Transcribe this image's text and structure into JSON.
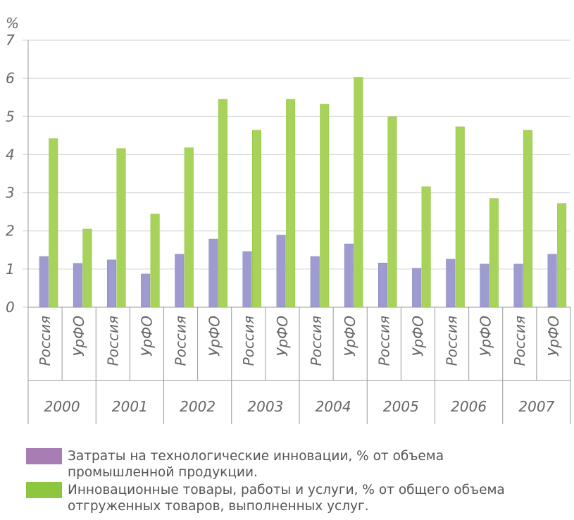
{
  "chart_data": {
    "type": "bar",
    "y_unit": "%",
    "categories": [
      "Россия",
      "УрФО",
      "Россия",
      "УрФО",
      "Россия",
      "УрФО",
      "Россия",
      "УрФО",
      "Россия",
      "УрФО",
      "Россия",
      "УрФО",
      "Россия",
      "УрФО",
      "Россия",
      "УрФО"
    ],
    "groups": [
      "2000",
      "2001",
      "2002",
      "2003",
      "2004",
      "2005",
      "2006",
      "2007"
    ],
    "series": [
      {
        "name": "Затраты на технологические инновации, % от объема промышленной продукции.",
        "color": "#9d9bd0",
        "legend_color": "#a77db4",
        "values": [
          1.33,
          1.15,
          1.24,
          0.87,
          1.39,
          1.79,
          1.46,
          1.89,
          1.33,
          1.66,
          1.16,
          1.02,
          1.26,
          1.13,
          1.13,
          1.39
        ]
      },
      {
        "name": "Инновационные товары, работы и услуги, % от общего объема отгруженных товаров, выполненных услуг.",
        "color": "#a8d35a",
        "legend_color": "#8dc63f",
        "values": [
          4.42,
          2.05,
          4.16,
          2.44,
          4.18,
          5.45,
          4.64,
          5.45,
          5.32,
          6.03,
          4.99,
          3.16,
          4.73,
          2.85,
          4.64,
          2.72
        ]
      }
    ],
    "ylim": [
      0,
      7
    ],
    "yticks": [
      0,
      1,
      2,
      3,
      4,
      5,
      6,
      7
    ],
    "grid": true
  }
}
